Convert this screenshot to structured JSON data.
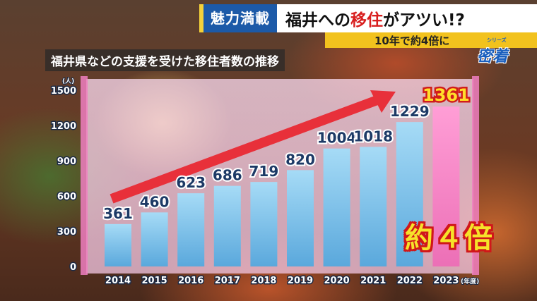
{
  "header": {
    "tag": "魅力満載",
    "title_pre": "福井への",
    "title_hl": "移住",
    "title_post": "がアツい!?"
  },
  "subheader": "10年で約4倍に",
  "logo": {
    "small": "シリーズ",
    "text": "密着"
  },
  "annotation": "約４倍",
  "colors": {
    "bar": "#7ec4ec",
    "bar_highlight": "#f07fc1",
    "arrow": "#e8303a",
    "accent": "#1c5aa8"
  },
  "chart_data": {
    "type": "bar",
    "title": "福井県などの支援を受けた移住者数の推移",
    "categories": [
      "2014",
      "2015",
      "2016",
      "2017",
      "2018",
      "2019",
      "2020",
      "2021",
      "2022",
      "2023"
    ],
    "values": [
      361,
      460,
      623,
      686,
      719,
      820,
      1004,
      1018,
      1229,
      1361
    ],
    "highlight_index": 9,
    "xunit": "(年度)",
    "yunit": "(人)",
    "ylim": [
      0,
      1500
    ],
    "yticks": [
      0,
      300,
      600,
      900,
      1200,
      1500
    ],
    "grid": false
  }
}
